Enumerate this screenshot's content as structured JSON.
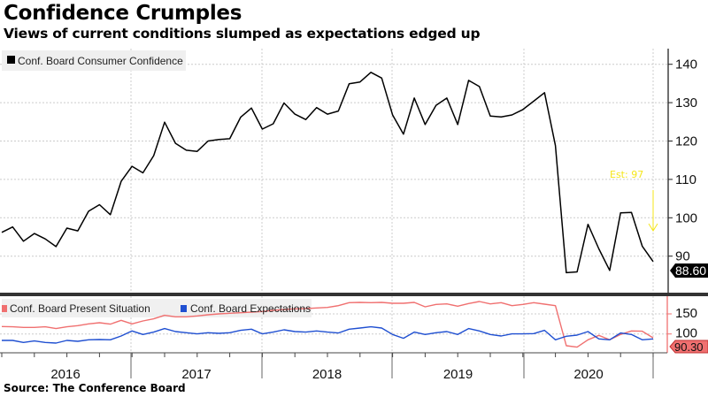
{
  "header": {
    "title": "Confidence Crumples",
    "subtitle": "Views of current conditions slumped as expectations edged up"
  },
  "source": "Source: The Conference Board",
  "chart_data": [
    {
      "type": "line",
      "title": "Conf. Board Consumer Confidence",
      "frequency": "monthly",
      "x_ticks": [
        "2016",
        "2017",
        "2018",
        "2019",
        "2020"
      ],
      "y_ticks": [
        "140",
        "130",
        "120",
        "110",
        "100",
        "90"
      ],
      "ylim": [
        82,
        144
      ],
      "legend": "top-left",
      "grid": true,
      "last_value_label": "88.60",
      "annotation": {
        "text": "Est: 97",
        "value": 97,
        "color": "#f5e61a"
      },
      "series": [
        {
          "name": "Conf. Board Consumer Confidence",
          "color": "#000000",
          "values": [
            96.2,
            97.6,
            93.9,
            95.9,
            94.5,
            92.5,
            97.3,
            96.6,
            101.7,
            103.4,
            100.8,
            109.5,
            113.4,
            111.7,
            116.2,
            124.9,
            119.4,
            117.6,
            117.3,
            120.0,
            120.4,
            120.6,
            126.2,
            128.6,
            123.1,
            124.5,
            129.9,
            127.0,
            125.6,
            128.7,
            127.0,
            127.8,
            134.9,
            135.4,
            137.9,
            136.4,
            126.8,
            121.8,
            131.2,
            124.3,
            129.3,
            131.2,
            124.3,
            135.8,
            134.2,
            126.5,
            126.3,
            126.8,
            128.2,
            130.4,
            132.6,
            118.8,
            85.7,
            85.9,
            98.3,
            91.9,
            86.3,
            101.3,
            101.4,
            92.6,
            88.6
          ]
        }
      ]
    },
    {
      "type": "line",
      "x_ticks": [
        "2016",
        "2017",
        "2018",
        "2019",
        "2020"
      ],
      "y_ticks": [
        "150",
        "100"
      ],
      "ylim": [
        60,
        190
      ],
      "legend": "top-left",
      "grid": true,
      "last_value_label": "90.30",
      "series": [
        {
          "name": "Conf. Board Present Situation",
          "color": "#f07070",
          "values": [
            118.5,
            117.8,
            116.3,
            116.3,
            117.8,
            113.4,
            117.8,
            120.7,
            125.1,
            128.0,
            124.4,
            133.9,
            125.1,
            132.4,
            137.6,
            146.4,
            142.7,
            142.7,
            144.9,
            147.8,
            150.0,
            151.5,
            152.9,
            154.4,
            155.9,
            158.8,
            161.0,
            162.5,
            163.2,
            164.7,
            166.1,
            170.5,
            177.9,
            178.6,
            177.9,
            178.6,
            176.4,
            176.4,
            178.6,
            167.6,
            173.5,
            174.9,
            169.1,
            175.7,
            180.8,
            174.9,
            177.9,
            170.5,
            173.5,
            177.9,
            174.2,
            170.5,
            70.9,
            67.2,
            85.5,
            96.5,
            85.5,
            98.7,
            107.5,
            106.8,
            90.3
          ]
        },
        {
          "name": "Conf. Board Expectations",
          "color": "#1f4fd1",
          "values": [
            84.0,
            84.0,
            78.9,
            82.6,
            78.9,
            77.5,
            84.0,
            81.8,
            85.5,
            86.2,
            85.5,
            95.0,
            107.5,
            98.7,
            104.6,
            113.4,
            106.0,
            103.1,
            100.2,
            103.1,
            101.6,
            103.1,
            109.0,
            111.9,
            100.2,
            104.6,
            110.4,
            106.0,
            104.6,
            107.5,
            104.6,
            102.4,
            111.9,
            114.8,
            117.8,
            114.8,
            98.7,
            89.2,
            104.6,
            98.7,
            103.1,
            106.0,
            98.7,
            113.4,
            107.5,
            98.7,
            95.0,
            100.2,
            100.2,
            100.9,
            109.0,
            85.5,
            94.3,
            97.2,
            106.0,
            87.7,
            85.5,
            102.4,
            98.7,
            85.5,
            87.7
          ]
        }
      ]
    }
  ]
}
